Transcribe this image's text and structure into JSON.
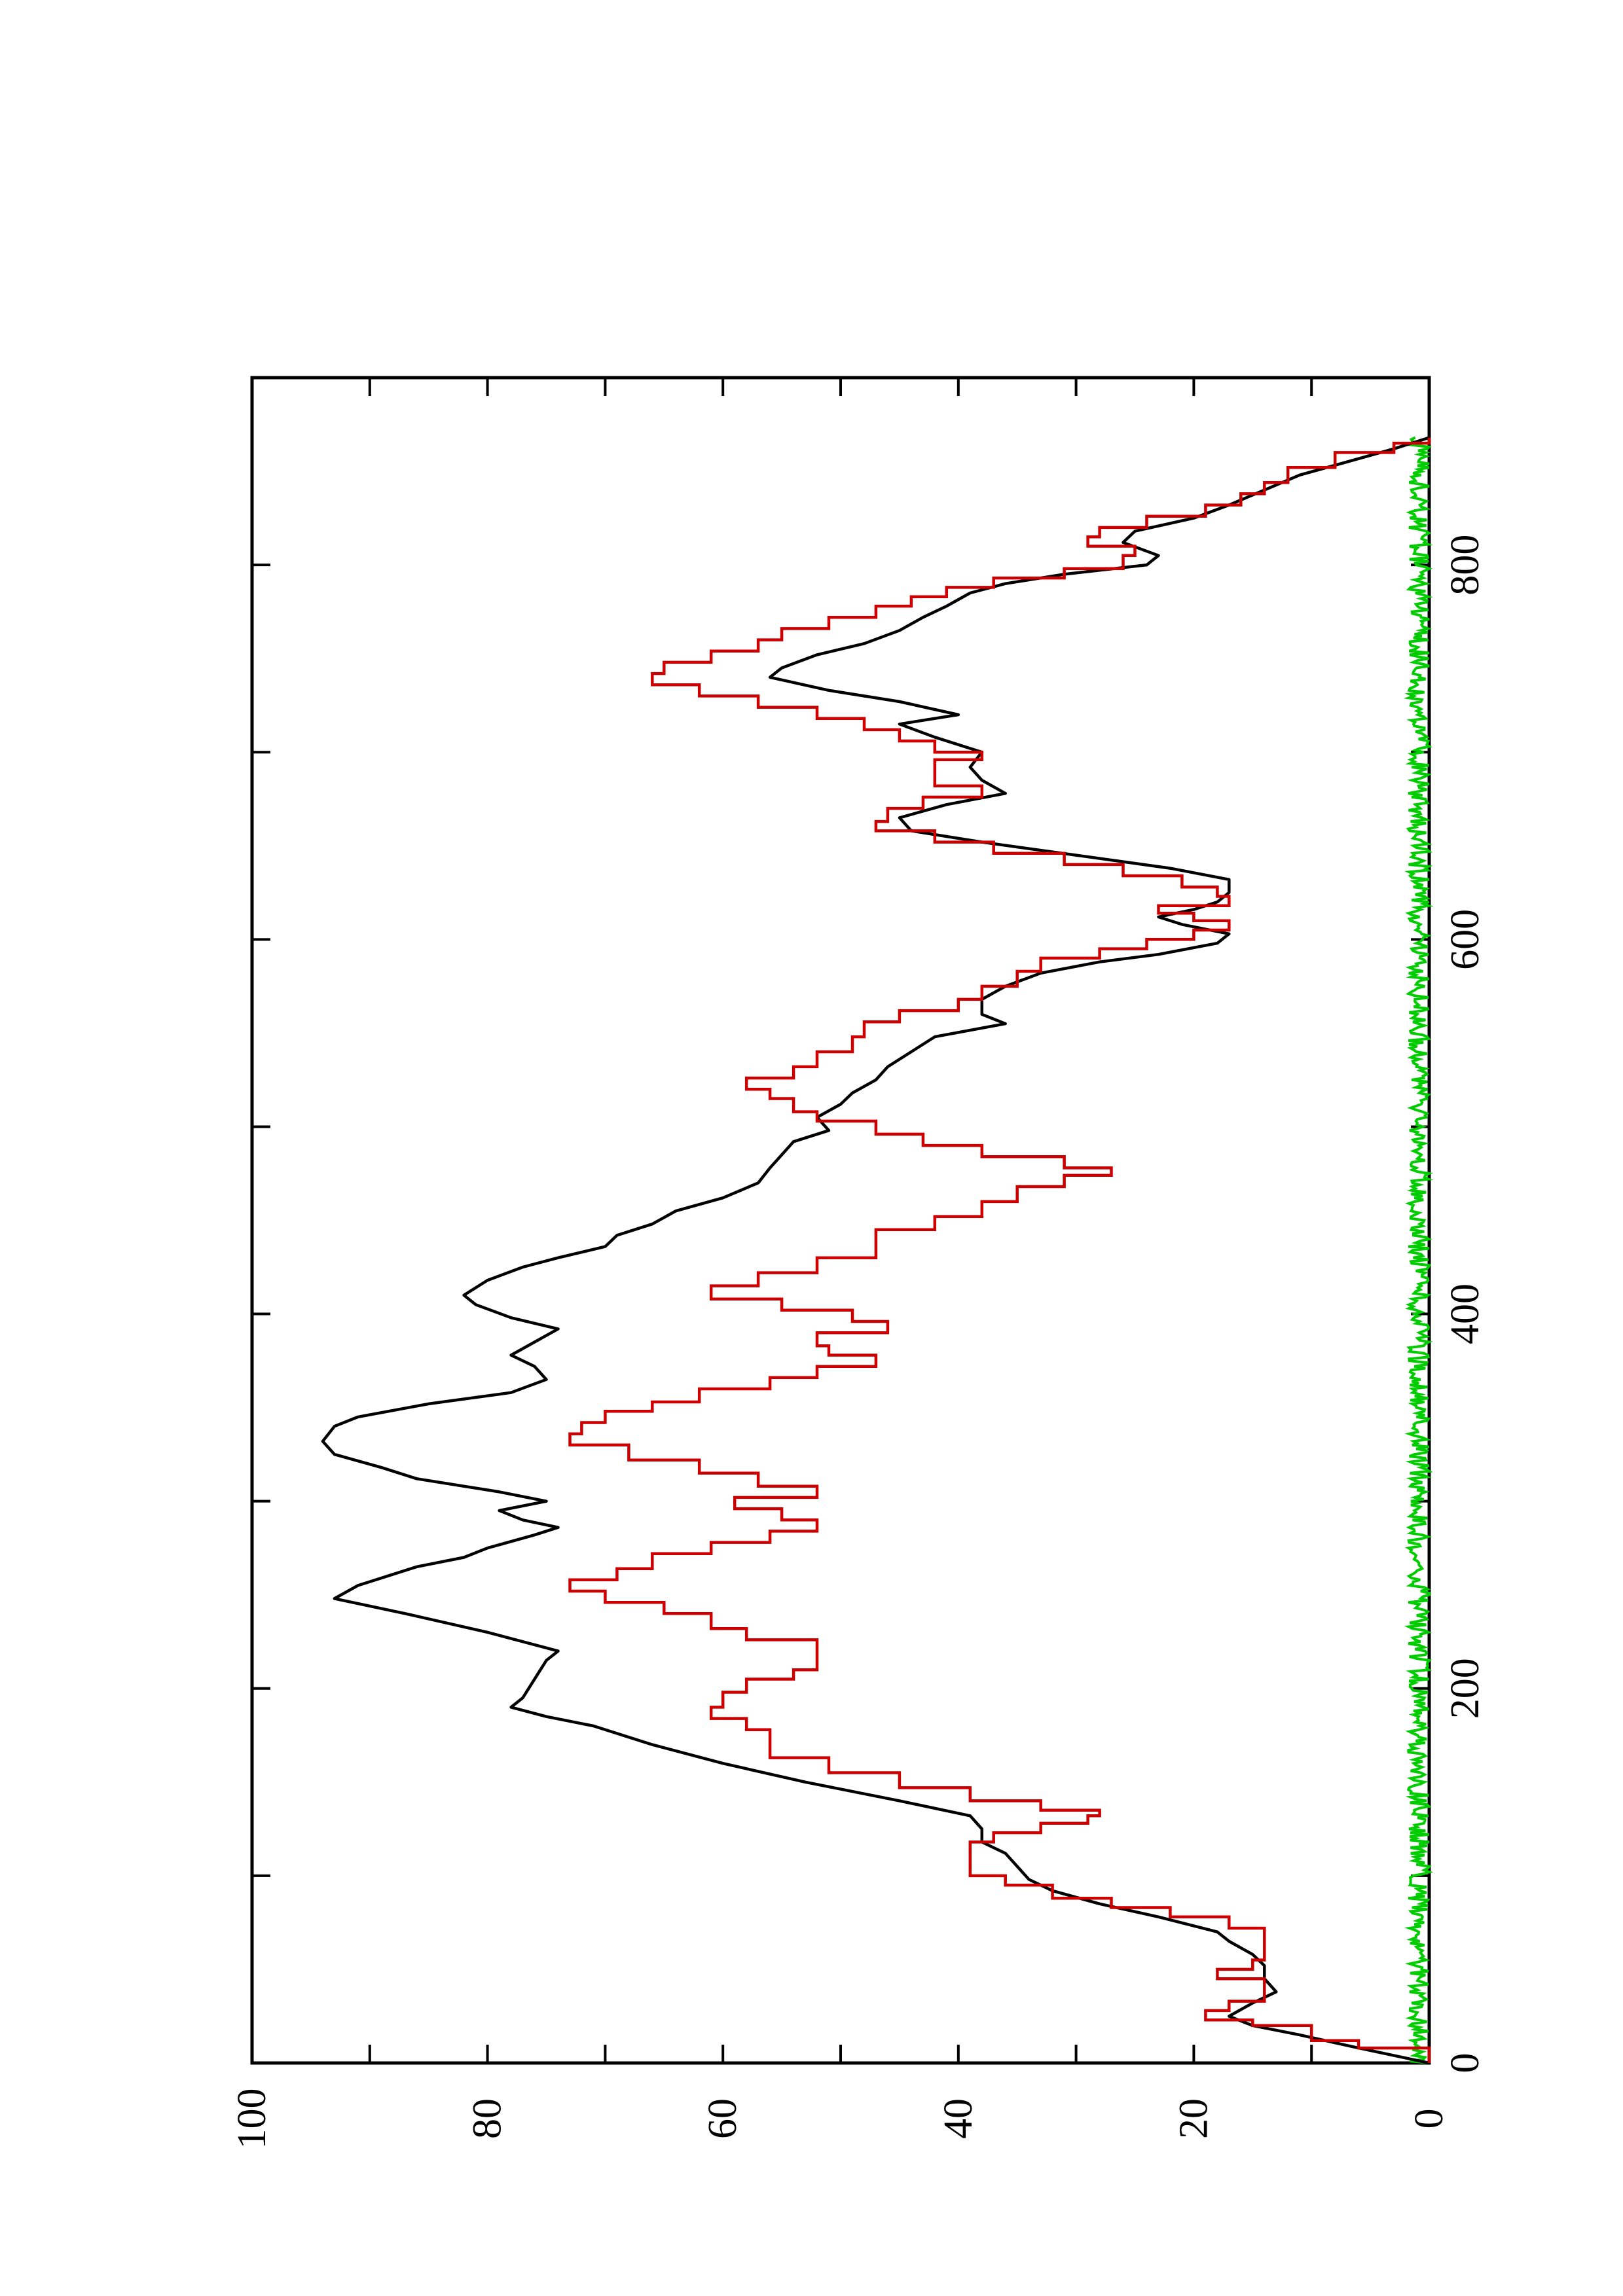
{
  "chart_data": {
    "type": "line",
    "orientation": "rotated-90-ccw",
    "title": "",
    "xlabel": "",
    "ylabel": "",
    "xlim": [
      0,
      900
    ],
    "ylim": [
      0,
      100
    ],
    "x_ticks": [
      0,
      200,
      400,
      600,
      800
    ],
    "x_tick_labels": [
      "0",
      "200",
      "400",
      "600",
      "800"
    ],
    "x_minor_ticks": [
      100,
      300,
      500,
      700
    ],
    "y_ticks": [
      0,
      20,
      40,
      60,
      80,
      100
    ],
    "y_tick_labels": [
      "0",
      "20",
      "40",
      "60",
      "80",
      "100"
    ],
    "y_minor_ticks": [
      10,
      30,
      50,
      70,
      90
    ],
    "grid": false,
    "legend": "none",
    "series": [
      {
        "color": "#000000",
        "style": "smooth",
        "points": [
          [
            0,
            0
          ],
          [
            8,
            6
          ],
          [
            15,
            11
          ],
          [
            20,
            15
          ],
          [
            25,
            17
          ],
          [
            32,
            15
          ],
          [
            38,
            13
          ],
          [
            45,
            14
          ],
          [
            52,
            14
          ],
          [
            58,
            15
          ],
          [
            65,
            17
          ],
          [
            70,
            18
          ],
          [
            78,
            23
          ],
          [
            85,
            28
          ],
          [
            92,
            32
          ],
          [
            98,
            34
          ],
          [
            105,
            35
          ],
          [
            112,
            36
          ],
          [
            118,
            38
          ],
          [
            125,
            38
          ],
          [
            132,
            39
          ],
          [
            140,
            45
          ],
          [
            150,
            53
          ],
          [
            160,
            60
          ],
          [
            170,
            66
          ],
          [
            180,
            71
          ],
          [
            185,
            75
          ],
          [
            190,
            78
          ],
          [
            195,
            77
          ],
          [
            205,
            76
          ],
          [
            215,
            75
          ],
          [
            220,
            74
          ],
          [
            230,
            80
          ],
          [
            240,
            87
          ],
          [
            248,
            93
          ],
          [
            255,
            91
          ],
          [
            265,
            86
          ],
          [
            270,
            82
          ],
          [
            275,
            80
          ],
          [
            282,
            76
          ],
          [
            286,
            74
          ],
          [
            290,
            77
          ],
          [
            295,
            79
          ],
          [
            300,
            75
          ],
          [
            305,
            79
          ],
          [
            312,
            86
          ],
          [
            318,
            89
          ],
          [
            325,
            93
          ],
          [
            332,
            94
          ],
          [
            340,
            93
          ],
          [
            345,
            91
          ],
          [
            352,
            85
          ],
          [
            358,
            78
          ],
          [
            365,
            75
          ],
          [
            372,
            76
          ],
          [
            378,
            78
          ],
          [
            385,
            76
          ],
          [
            392,
            74
          ],
          [
            398,
            78
          ],
          [
            405,
            81
          ],
          [
            410,
            82
          ],
          [
            418,
            80
          ],
          [
            425,
            77
          ],
          [
            430,
            74
          ],
          [
            436,
            70
          ],
          [
            442,
            69
          ],
          [
            448,
            66
          ],
          [
            455,
            64
          ],
          [
            462,
            60
          ],
          [
            470,
            57
          ],
          [
            478,
            56
          ],
          [
            485,
            55
          ],
          [
            492,
            54
          ],
          [
            498,
            51
          ],
          [
            505,
            52
          ],
          [
            512,
            50
          ],
          [
            518,
            49
          ],
          [
            525,
            47
          ],
          [
            532,
            46
          ],
          [
            540,
            44
          ],
          [
            548,
            42
          ],
          [
            555,
            36
          ],
          [
            560,
            38
          ],
          [
            568,
            38
          ],
          [
            575,
            36
          ],
          [
            582,
            33
          ],
          [
            588,
            28
          ],
          [
            592,
            23
          ],
          [
            598,
            18
          ],
          [
            603,
            17
          ],
          [
            608,
            21
          ],
          [
            612,
            23
          ],
          [
            616,
            20
          ],
          [
            620,
            18
          ],
          [
            625,
            17
          ],
          [
            632,
            17
          ],
          [
            638,
            22
          ],
          [
            645,
            30
          ],
          [
            652,
            38
          ],
          [
            658,
            44
          ],
          [
            665,
            45
          ],
          [
            672,
            41
          ],
          [
            678,
            36
          ],
          [
            685,
            38
          ],
          [
            692,
            39
          ],
          [
            700,
            38
          ],
          [
            708,
            42
          ],
          [
            715,
            45
          ],
          [
            720,
            40
          ],
          [
            727,
            45
          ],
          [
            733,
            51
          ],
          [
            740,
            56
          ],
          [
            745,
            55
          ],
          [
            752,
            52
          ],
          [
            758,
            48
          ],
          [
            765,
            45
          ],
          [
            772,
            43
          ],
          [
            778,
            41
          ],
          [
            785,
            39
          ],
          [
            790,
            36
          ],
          [
            795,
            31
          ],
          [
            800,
            24
          ],
          [
            805,
            23
          ],
          [
            812,
            26
          ],
          [
            818,
            25
          ],
          [
            825,
            20
          ],
          [
            832,
            17
          ],
          [
            840,
            14
          ],
          [
            848,
            11
          ],
          [
            855,
            7
          ],
          [
            862,
            3
          ],
          [
            868,
            0
          ]
        ]
      },
      {
        "color": "#cc0000",
        "style": "steps",
        "points": [
          [
            0,
            0
          ],
          [
            8,
            6
          ],
          [
            12,
            10
          ],
          [
            20,
            15
          ],
          [
            23,
            19
          ],
          [
            28,
            17
          ],
          [
            33,
            14
          ],
          [
            40,
            14
          ],
          [
            45,
            18
          ],
          [
            50,
            15
          ],
          [
            55,
            14
          ],
          [
            60,
            14
          ],
          [
            70,
            14
          ],
          [
            72,
            17
          ],
          [
            78,
            22
          ],
          [
            83,
            27
          ],
          [
            88,
            32
          ],
          [
            95,
            36
          ],
          [
            100,
            39
          ],
          [
            110,
            39
          ],
          [
            118,
            37
          ],
          [
            123,
            33
          ],
          [
            128,
            29
          ],
          [
            132,
            28
          ],
          [
            135,
            33
          ],
          [
            140,
            39
          ],
          [
            147,
            45
          ],
          [
            155,
            51
          ],
          [
            163,
            56
          ],
          [
            172,
            56
          ],
          [
            178,
            58
          ],
          [
            184,
            61
          ],
          [
            190,
            60
          ],
          [
            198,
            58
          ],
          [
            205,
            54
          ],
          [
            210,
            52
          ],
          [
            220,
            52
          ],
          [
            226,
            58
          ],
          [
            232,
            61
          ],
          [
            240,
            65
          ],
          [
            246,
            70
          ],
          [
            252,
            73
          ],
          [
            258,
            69
          ],
          [
            264,
            66
          ],
          [
            272,
            61
          ],
          [
            278,
            56
          ],
          [
            284,
            52
          ],
          [
            290,
            55
          ],
          [
            296,
            59
          ],
          [
            302,
            52
          ],
          [
            308,
            57
          ],
          [
            315,
            62
          ],
          [
            322,
            68
          ],
          [
            330,
            73
          ],
          [
            336,
            72
          ],
          [
            342,
            70
          ],
          [
            348,
            66
          ],
          [
            353,
            62
          ],
          [
            360,
            56
          ],
          [
            366,
            52
          ],
          [
            372,
            47
          ],
          [
            378,
            51
          ],
          [
            383,
            52
          ],
          [
            390,
            46
          ],
          [
            396,
            49
          ],
          [
            402,
            55
          ],
          [
            408,
            61
          ],
          [
            415,
            57
          ],
          [
            422,
            52
          ],
          [
            430,
            47
          ],
          [
            438,
            47
          ],
          [
            445,
            42
          ],
          [
            452,
            38
          ],
          [
            460,
            35
          ],
          [
            468,
            31
          ],
          [
            474,
            27
          ],
          [
            478,
            31
          ],
          [
            484,
            38
          ],
          [
            490,
            43
          ],
          [
            496,
            47
          ],
          [
            503,
            52
          ],
          [
            508,
            54
          ],
          [
            515,
            56
          ],
          [
            520,
            58
          ],
          [
            526,
            54
          ],
          [
            532,
            52
          ],
          [
            540,
            49
          ],
          [
            548,
            48
          ],
          [
            556,
            45
          ],
          [
            562,
            40
          ],
          [
            568,
            38
          ],
          [
            575,
            35
          ],
          [
            583,
            33
          ],
          [
            590,
            28
          ],
          [
            595,
            24
          ],
          [
            600,
            20
          ],
          [
            605,
            17
          ],
          [
            610,
            20
          ],
          [
            614,
            23
          ],
          [
            618,
            17
          ],
          [
            623,
            18
          ],
          [
            628,
            21
          ],
          [
            634,
            26
          ],
          [
            640,
            31
          ],
          [
            646,
            37
          ],
          [
            652,
            42
          ],
          [
            658,
            47
          ],
          [
            663,
            46
          ],
          [
            670,
            43
          ],
          [
            676,
            38
          ],
          [
            682,
            42
          ],
          [
            690,
            42
          ],
          [
            696,
            38
          ],
          [
            700,
            42
          ],
          [
            706,
            45
          ],
          [
            712,
            48
          ],
          [
            718,
            52
          ],
          [
            724,
            57
          ],
          [
            730,
            62
          ],
          [
            736,
            66
          ],
          [
            742,
            65
          ],
          [
            748,
            61
          ],
          [
            754,
            57
          ],
          [
            760,
            55
          ],
          [
            766,
            51
          ],
          [
            772,
            47
          ],
          [
            778,
            44
          ],
          [
            783,
            41
          ],
          [
            788,
            37
          ],
          [
            793,
            31
          ],
          [
            798,
            26
          ],
          [
            805,
            25
          ],
          [
            810,
            29
          ],
          [
            815,
            28
          ],
          [
            820,
            24
          ],
          [
            826,
            19
          ],
          [
            832,
            16
          ],
          [
            838,
            14
          ],
          [
            844,
            12
          ],
          [
            852,
            8
          ],
          [
            860,
            3
          ],
          [
            865,
            0
          ],
          [
            868,
            0
          ]
        ]
      },
      {
        "color": "#00cc00",
        "style": "noise",
        "baseline": 0.7,
        "amplitude": 0.9,
        "n_points": 868
      }
    ]
  }
}
